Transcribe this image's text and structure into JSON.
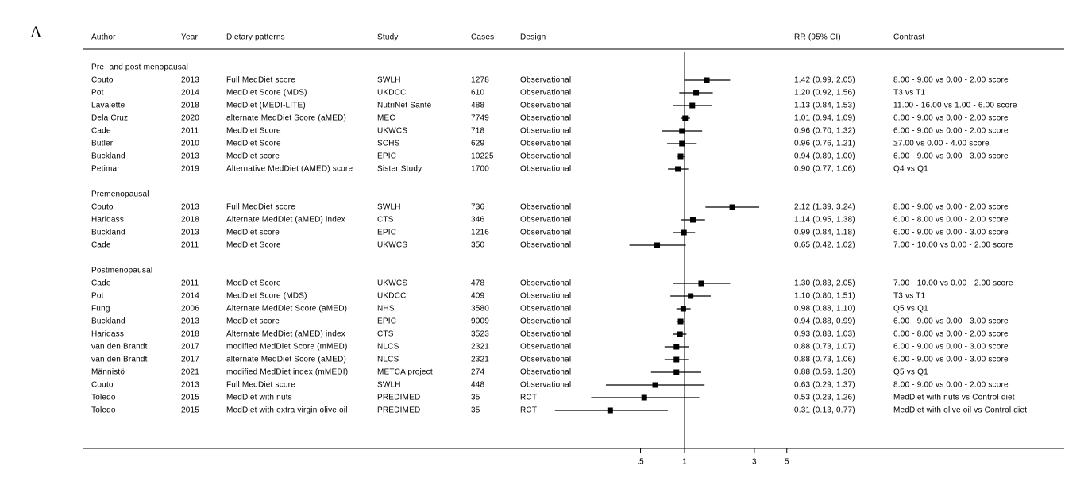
{
  "panel_label": "A",
  "chart_data": {
    "type": "forest",
    "columns": [
      "Author",
      "Year",
      "Dietary patterns",
      "Study",
      "Cases",
      "Design",
      "RR (95% CI)",
      "Contrast"
    ],
    "groups": [
      {
        "name": "Pre- and post menopausal",
        "rows": [
          {
            "author": "Couto",
            "year": "2013",
            "pattern": "Full MedDiet score",
            "study": "SWLH",
            "cases": 1278,
            "design": "Observational",
            "rr": 1.42,
            "ci": [
              0.99,
              2.05
            ],
            "value_label": "1.42 (0.99, 2.05)",
            "contrast": "8.00 - 9.00 vs 0.00 - 2.00 score"
          },
          {
            "author": "Pot",
            "year": "2014",
            "pattern": "MedDiet Score (MDS)",
            "study": "UKDCC",
            "cases": 610,
            "design": "Observational",
            "rr": 1.2,
            "ci": [
              0.92,
              1.56
            ],
            "value_label": "1.20 (0.92, 1.56)",
            "contrast": "T3 vs T1"
          },
          {
            "author": "Lavalette",
            "year": "2018",
            "pattern": "MedDiet (MEDI-LITE)",
            "study": "NutriNet Santé",
            "cases": 488,
            "design": "Observational",
            "rr": 1.13,
            "ci": [
              0.84,
              1.53
            ],
            "value_label": "1.13 (0.84, 1.53)",
            "contrast": "11.00 - 16.00 vs 1.00 - 6.00 score"
          },
          {
            "author": "Dela Cruz",
            "year": "2020",
            "pattern": "alternate MedDiet Score (aMED)",
            "study": "MEC",
            "cases": 7749,
            "design": "Observational",
            "rr": 1.01,
            "ci": [
              0.94,
              1.09
            ],
            "value_label": "1.01 (0.94, 1.09)",
            "contrast": "6.00 - 9.00 vs 0.00 - 2.00 score"
          },
          {
            "author": "Cade",
            "year": "2011",
            "pattern": "MedDiet Score",
            "study": "UKWCS",
            "cases": 718,
            "design": "Observational",
            "rr": 0.96,
            "ci": [
              0.7,
              1.32
            ],
            "value_label": "0.96 (0.70, 1.32)",
            "contrast": "6.00 - 9.00 vs 0.00 - 2.00 score"
          },
          {
            "author": "Butler",
            "year": "2010",
            "pattern": "MedDiet Score",
            "study": "SCHS",
            "cases": 629,
            "design": "Observational",
            "rr": 0.96,
            "ci": [
              0.76,
              1.21
            ],
            "value_label": "0.96 (0.76, 1.21)",
            "contrast": "≥7.00 vs 0.00 - 4.00 score"
          },
          {
            "author": "Buckland",
            "year": "2013",
            "pattern": "MedDiet score",
            "study": "EPIC",
            "cases": 10225,
            "design": "Observational",
            "rr": 0.94,
            "ci": [
              0.89,
              1.0
            ],
            "value_label": "0.94 (0.89, 1.00)",
            "contrast": "6.00 - 9.00 vs 0.00 - 3.00 score"
          },
          {
            "author": "Petimar",
            "year": "2019",
            "pattern": "Alternative MedDiet (AMED) score",
            "study": "Sister Study",
            "cases": 1700,
            "design": "Observational",
            "rr": 0.9,
            "ci": [
              0.77,
              1.06
            ],
            "value_label": "0.90 (0.77, 1.06)",
            "contrast": "Q4 vs Q1"
          }
        ]
      },
      {
        "name": "Premenopausal",
        "rows": [
          {
            "author": "Couto",
            "year": "2013",
            "pattern": "Full MedDiet score",
            "study": "SWLH",
            "cases": 736,
            "design": "Observational",
            "rr": 2.12,
            "ci": [
              1.39,
              3.24
            ],
            "value_label": "2.12 (1.39, 3.24)",
            "contrast": "8.00 - 9.00 vs 0.00 - 2.00 score"
          },
          {
            "author": "Haridass",
            "year": "2018",
            "pattern": "Alternate MedDiet (aMED) index",
            "study": "CTS",
            "cases": 346,
            "design": "Observational",
            "rr": 1.14,
            "ci": [
              0.95,
              1.38
            ],
            "value_label": "1.14 (0.95, 1.38)",
            "contrast": "6.00 - 8.00 vs 0.00 - 2.00 score"
          },
          {
            "author": "Buckland",
            "year": "2013",
            "pattern": "MedDiet score",
            "study": "EPIC",
            "cases": 1216,
            "design": "Observational",
            "rr": 0.99,
            "ci": [
              0.84,
              1.18
            ],
            "value_label": "0.99 (0.84, 1.18)",
            "contrast": "6.00 - 9.00 vs 0.00 - 3.00 score"
          },
          {
            "author": "Cade",
            "year": "2011",
            "pattern": "MedDiet Score",
            "study": "UKWCS",
            "cases": 350,
            "design": "Observational",
            "rr": 0.65,
            "ci": [
              0.42,
              1.02
            ],
            "value_label": "0.65 (0.42, 1.02)",
            "contrast": "7.00 - 10.00 vs 0.00 - 2.00 score"
          }
        ]
      },
      {
        "name": "Postmenopausal",
        "rows": [
          {
            "author": "Cade",
            "year": "2011",
            "pattern": "MedDiet Score",
            "study": "UKWCS",
            "cases": 478,
            "design": "Observational",
            "rr": 1.3,
            "ci": [
              0.83,
              2.05
            ],
            "value_label": "1.30 (0.83, 2.05)",
            "contrast": "7.00 - 10.00 vs 0.00 - 2.00 score"
          },
          {
            "author": "Pot",
            "year": "2014",
            "pattern": "MedDiet Score (MDS)",
            "study": "UKDCC",
            "cases": 409,
            "design": "Observational",
            "rr": 1.1,
            "ci": [
              0.8,
              1.51
            ],
            "value_label": "1.10 (0.80, 1.51)",
            "contrast": "T3 vs T1"
          },
          {
            "author": "Fung",
            "year": "2006",
            "pattern": "Alternate MedDiet Score (aMED)",
            "study": "NHS",
            "cases": 3580,
            "design": "Observational",
            "rr": 0.98,
            "ci": [
              0.88,
              1.1
            ],
            "value_label": "0.98 (0.88, 1.10)",
            "contrast": "Q5 vs Q1"
          },
          {
            "author": "Buckland",
            "year": "2013",
            "pattern": "MedDiet score",
            "study": "EPIC",
            "cases": 9009,
            "design": "Observational",
            "rr": 0.94,
            "ci": [
              0.88,
              0.99
            ],
            "value_label": "0.94 (0.88, 0.99)",
            "contrast": "6.00 - 9.00 vs 0.00 - 3.00 score"
          },
          {
            "author": "Haridass",
            "year": "2018",
            "pattern": "Alternate MedDiet (aMED) index",
            "study": "CTS",
            "cases": 3523,
            "design": "Observational",
            "rr": 0.93,
            "ci": [
              0.83,
              1.03
            ],
            "value_label": "0.93 (0.83, 1.03)",
            "contrast": "6.00 - 8.00 vs 0.00 - 2.00 score"
          },
          {
            "author": "van den Brandt",
            "year": "2017",
            "pattern": "modified MedDiet Score (mMED)",
            "study": "NLCS",
            "cases": 2321,
            "design": "Observational",
            "rr": 0.88,
            "ci": [
              0.73,
              1.07
            ],
            "value_label": "0.88 (0.73, 1.07)",
            "contrast": "6.00 - 9.00 vs 0.00 - 3.00 score"
          },
          {
            "author": "van den Brandt",
            "year": "2017",
            "pattern": "alternate MedDiet Score (aMED)",
            "study": "NLCS",
            "cases": 2321,
            "design": "Observational",
            "rr": 0.88,
            "ci": [
              0.73,
              1.06
            ],
            "value_label": "0.88 (0.73, 1.06)",
            "contrast": "6.00 - 9.00 vs 0.00 - 3.00 score"
          },
          {
            "author": "Männistö",
            "year": "2021",
            "pattern": "modified MedDiet index (mMEDI)",
            "study": "METCA project",
            "cases": 274,
            "design": "Observational",
            "rr": 0.88,
            "ci": [
              0.59,
              1.3
            ],
            "value_label": "0.88 (0.59, 1.30)",
            "contrast": "Q5 vs Q1"
          },
          {
            "author": "Couto",
            "year": "2013",
            "pattern": "Full MedDiet score",
            "study": "SWLH",
            "cases": 448,
            "design": "Observational",
            "rr": 0.63,
            "ci": [
              0.29,
              1.37
            ],
            "value_label": "0.63 (0.29, 1.37)",
            "contrast": "8.00 - 9.00 vs 0.00 - 2.00 score"
          },
          {
            "author": "Toledo",
            "year": "2015",
            "pattern": "MedDiet with nuts",
            "study": "PREDIMED",
            "cases": 35,
            "design": "RCT",
            "rr": 0.53,
            "ci": [
              0.23,
              1.26
            ],
            "value_label": "0.53 (0.23, 1.26)",
            "contrast": "MedDiet with nuts vs Control diet"
          },
          {
            "author": "Toledo",
            "year": "2015",
            "pattern": "MedDiet with extra virgin olive oil",
            "study": "PREDIMED",
            "cases": 35,
            "design": "RCT",
            "rr": 0.31,
            "ci": [
              0.13,
              0.77
            ],
            "value_label": "0.31 (0.13, 0.77)",
            "contrast": "MedDiet with olive oil vs Control diet"
          }
        ]
      }
    ],
    "xlim": [
      0.12,
      6
    ],
    "xticks": [
      {
        "value": 0.5,
        "label": ".5"
      },
      1,
      3,
      5
    ],
    "log": true,
    "null_line": 1,
    "color": "#000000"
  }
}
